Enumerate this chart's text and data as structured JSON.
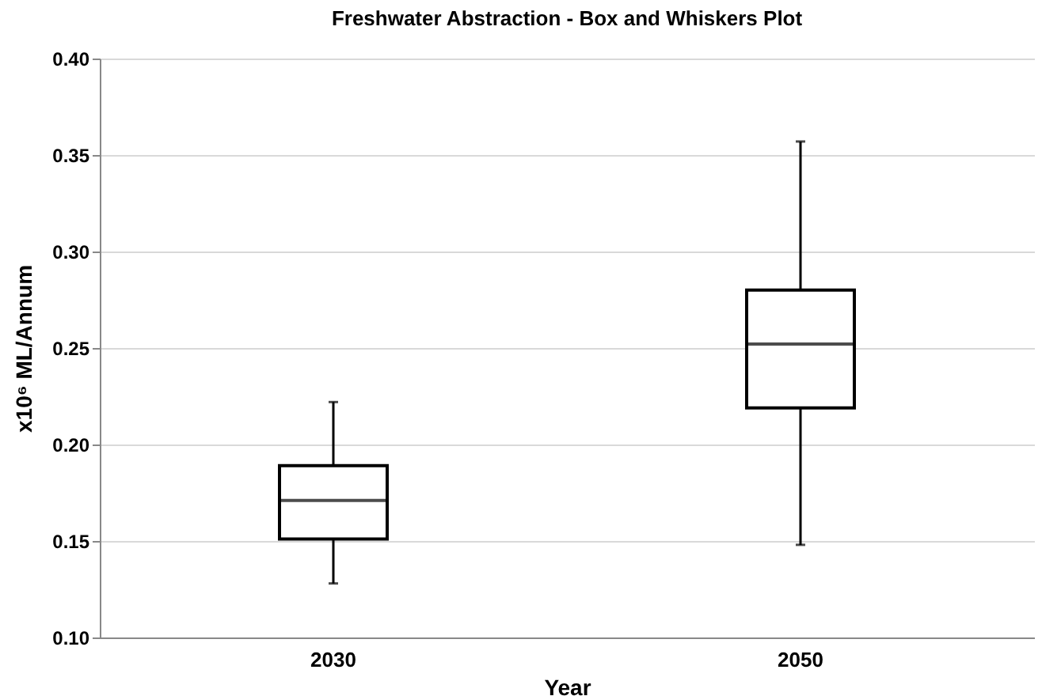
{
  "chart_data": {
    "type": "box",
    "title": "Freshwater Abstraction  - Box and Whiskers Plot",
    "xlabel": "Year",
    "ylabel": "x10⁶ ML/Annum",
    "categories": [
      "2030",
      "2050"
    ],
    "boxes": [
      {
        "low": 0.128,
        "q1": 0.151,
        "median": 0.171,
        "q3": 0.189,
        "high": 0.222
      },
      {
        "low": 0.148,
        "q1": 0.219,
        "median": 0.252,
        "q3": 0.28,
        "high": 0.357
      }
    ],
    "ylim": [
      0.1,
      0.4
    ],
    "yticks": [
      {
        "value": 0.1,
        "label": "0.10"
      },
      {
        "value": 0.15,
        "label": "0.15"
      },
      {
        "value": 0.2,
        "label": "0.20"
      },
      {
        "value": 0.25,
        "label": "0.25"
      },
      {
        "value": 0.3,
        "label": "0.30"
      },
      {
        "value": 0.35,
        "label": "0.35"
      },
      {
        "value": 0.4,
        "label": "0.40"
      }
    ],
    "grid": "y"
  }
}
